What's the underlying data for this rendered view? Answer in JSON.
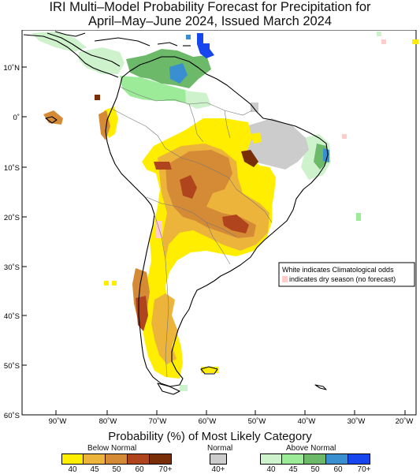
{
  "title_line1": "IRI Multi–Model Probability Forecast for Precipitation for",
  "title_line2": "April–May–June 2024, Issued March 2024",
  "lat_labels": [
    "10˚N",
    "0˚",
    "10˚S",
    "20˚S",
    "30˚S",
    "40˚S",
    "50˚S",
    "60˚S"
  ],
  "lon_labels": [
    "90˚W",
    "80˚W",
    "70˚W",
    "60˚W",
    "50˚W",
    "40˚W",
    "30˚W",
    "20˚W"
  ],
  "note_line1": "White indicates Climatological odds",
  "note_line2": "indicates dry season (no forecast)",
  "legend": {
    "title": "Probability (%) of Most Likely Category",
    "below_normal": {
      "label": "Below Normal",
      "colors": [
        "#ffee00",
        "#ecb43b",
        "#d58a36",
        "#b0441c",
        "#7a2e07"
      ],
      "ticks": [
        "40",
        "45",
        "50",
        "60",
        "70+"
      ]
    },
    "normal": {
      "label": "Normal",
      "color": "#cccccc",
      "tick": "40+"
    },
    "above_normal": {
      "label": "Above Normal",
      "colors": [
        "#cdf2cc",
        "#9ceb98",
        "#6cb96a",
        "#3a8fd0",
        "#1846ee"
      ],
      "ticks": [
        "40",
        "45",
        "50",
        "60",
        "70+"
      ]
    },
    "dry_season_color": "#ffcccc"
  }
}
